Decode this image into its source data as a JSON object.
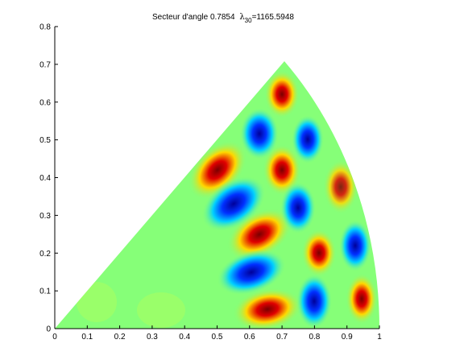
{
  "chart_data": {
    "type": "sector-field",
    "title": "Secteur d'angle 0.7854",
    "title_symbol": "λ",
    "title_subscript": "30",
    "title_value": "=1165.5948",
    "xlim": [
      0,
      1
    ],
    "ylim": [
      0,
      0.8
    ],
    "xticks": [
      0,
      0.1,
      0.2,
      0.3,
      0.4,
      0.5,
      0.6,
      0.7,
      0.8,
      0.9,
      1
    ],
    "yticks": [
      0,
      0.1,
      0.2,
      0.3,
      0.4,
      0.5,
      0.6,
      0.7,
      0.8
    ]
  }
}
